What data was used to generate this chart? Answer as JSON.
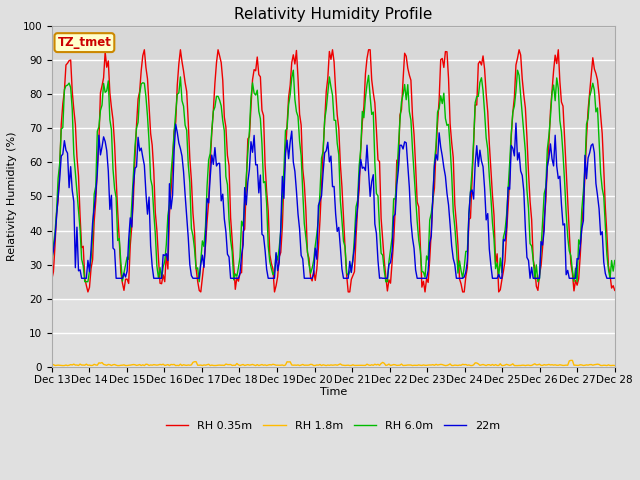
{
  "title": "Relativity Humidity Profile",
  "ylabel": "Relativity Humidity (%)",
  "xlabel": "Time",
  "annotation_text": "TZ_tmet",
  "ylim": [
    0,
    100
  ],
  "yticks": [
    0,
    10,
    20,
    30,
    40,
    50,
    60,
    70,
    80,
    90,
    100
  ],
  "n_days": 15,
  "n_hours": 360,
  "fig_facecolor": "#e0e0e0",
  "plot_facecolor": "#d8d8d8",
  "series": [
    {
      "label": "RH 0.35m",
      "color": "#ee0000",
      "lw": 1.0
    },
    {
      "label": "RH 1.8m",
      "color": "#ffbb00",
      "lw": 1.0
    },
    {
      "label": "RH 6.0m",
      "color": "#00bb00",
      "lw": 1.0
    },
    {
      "label": "22m",
      "color": "#0000dd",
      "lw": 1.0
    }
  ],
  "xtick_labels": [
    "Dec 13",
    "Dec 14",
    "Dec 15",
    "Dec 16",
    "Dec 17",
    "Dec 18",
    "Dec 19",
    "Dec 20",
    "Dec 21",
    "Dec 22",
    "Dec 23",
    "Dec 24",
    "Dec 25",
    "Dec 26",
    "Dec 27",
    "Dec 28"
  ],
  "legend_ncol": 4,
  "title_fontsize": 11,
  "axis_fontsize": 8,
  "tick_fontsize": 7.5,
  "annotation_fontsize": 8.5,
  "grid_color": "#ffffff",
  "grid_lw": 1.0,
  "spine_color": "#aaaaaa"
}
